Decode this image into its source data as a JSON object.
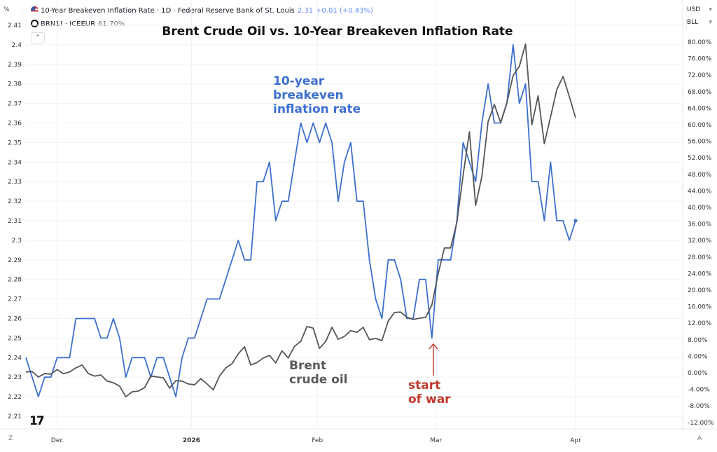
{
  "header": {
    "left_unit": "%",
    "main_series": {
      "label": "10-Year Breakeven Inflation Rate · 1D · Federal Reserve Bank of St. Louis",
      "value": "2.31",
      "change": "+0.01 (+0.43%)",
      "icon": "us-flag-icon"
    },
    "compare_series": {
      "label": "BRN1! · ICEEUR",
      "value": "61.70%",
      "icon": "ring-icon"
    },
    "collapse_icon": "chevron-up-icon",
    "currency": "USD",
    "unit": "BLL",
    "bottom_left": "Z",
    "bottom_right": "A"
  },
  "chart_data": {
    "type": "line",
    "title": "Brent Crude Oil vs. 10-Year Breakeven Inflation Rate",
    "annotations": {
      "breakeven": "10-year breakeven inflation rate",
      "brent": "Brent crude oil",
      "war": "start of war"
    },
    "x_tick_labels": [
      {
        "label": "Dec",
        "date": "2025-12-01"
      },
      {
        "label": "2026",
        "date": "2026-01-01"
      },
      {
        "label": "Feb",
        "date": "2026-02-01"
      },
      {
        "label": "Mar",
        "date": "2026-03-01"
      },
      {
        "label": "Apr",
        "date": "2026-04-01"
      }
    ],
    "left_axis": {
      "ylim": [
        2.205,
        2.415
      ],
      "ticks": [
        "2.21",
        "2.22",
        "2.23",
        "2.24",
        "2.25",
        "2.26",
        "2.27",
        "2.28",
        "2.29",
        "2.3",
        "2.31",
        "2.32",
        "2.33",
        "2.34",
        "2.35",
        "2.36",
        "2.37",
        "2.38",
        "2.39",
        "2.4",
        "2.41"
      ]
    },
    "right_axis": {
      "ylim": [
        -13,
        84
      ],
      "ticks": [
        "80.00%",
        "76.00%",
        "72.00%",
        "68.00%",
        "64.00%",
        "60.00%",
        "56.00%",
        "52.00%",
        "48.00%",
        "44.00%",
        "40.00%",
        "36.00%",
        "32.00%",
        "28.00%",
        "24.00%",
        "20.00%",
        "16.00%",
        "12.00%",
        "8.00%",
        "4.00%",
        "0.00%",
        "-4.00%",
        "-8.00%",
        "-12.00%"
      ]
    },
    "grid": true,
    "dates": [
      "2025-11-21",
      "2025-11-24",
      "2025-11-25",
      "2025-11-26",
      "2025-11-28",
      "2025-12-01",
      "2025-12-02",
      "2025-12-03",
      "2025-12-04",
      "2025-12-05",
      "2025-12-08",
      "2025-12-09",
      "2025-12-10",
      "2025-12-11",
      "2025-12-12",
      "2025-12-15",
      "2025-12-16",
      "2025-12-17",
      "2025-12-18",
      "2025-12-19",
      "2025-12-22",
      "2025-12-23",
      "2025-12-24",
      "2025-12-26",
      "2025-12-29",
      "2025-12-30",
      "2025-12-31",
      "2026-01-02",
      "2026-01-05",
      "2026-01-06",
      "2026-01-07",
      "2026-01-08",
      "2026-01-09",
      "2026-01-12",
      "2026-01-13",
      "2026-01-14",
      "2026-01-15",
      "2026-01-16",
      "2026-01-20",
      "2026-01-21",
      "2026-01-22",
      "2026-01-23",
      "2026-01-26",
      "2026-01-27",
      "2026-01-28",
      "2026-01-29",
      "2026-01-30",
      "2026-02-02",
      "2026-02-03",
      "2026-02-04",
      "2026-02-05",
      "2026-02-06",
      "2026-02-09",
      "2026-02-10",
      "2026-02-11",
      "2026-02-12",
      "2026-02-13",
      "2026-02-17",
      "2026-02-18",
      "2026-02-19",
      "2026-02-20",
      "2026-02-23",
      "2026-02-24",
      "2026-02-25",
      "2026-02-26",
      "2026-02-27",
      "2026-03-02",
      "2026-03-03",
      "2026-03-04",
      "2026-03-05",
      "2026-03-06",
      "2026-03-09",
      "2026-03-10",
      "2026-03-11",
      "2026-03-12",
      "2026-03-13",
      "2026-03-16",
      "2026-03-17",
      "2026-03-18",
      "2026-03-19",
      "2026-03-20",
      "2026-03-23",
      "2026-03-24",
      "2026-03-25",
      "2026-03-26",
      "2026-03-27",
      "2026-03-30",
      "2026-03-31",
      "2026-04-01"
    ],
    "war_start_date": "2026-02-27",
    "series": [
      {
        "key": "breakeven",
        "axis": "left",
        "color": "#3d6fcf",
        "values": [
          2.24,
          2.23,
          2.22,
          2.23,
          2.23,
          2.24,
          2.24,
          2.24,
          2.26,
          2.26,
          2.26,
          2.26,
          2.25,
          2.25,
          2.26,
          2.25,
          2.23,
          2.24,
          2.24,
          2.24,
          2.23,
          2.24,
          2.24,
          2.23,
          2.22,
          2.24,
          2.25,
          2.25,
          2.26,
          2.27,
          2.27,
          2.27,
          2.28,
          2.29,
          2.3,
          2.29,
          2.29,
          2.33,
          2.33,
          2.34,
          2.31,
          2.32,
          2.32,
          2.34,
          2.36,
          2.35,
          2.36,
          2.35,
          2.36,
          2.35,
          2.32,
          2.34,
          2.35,
          2.32,
          2.32,
          2.29,
          2.27,
          2.26,
          2.29,
          2.29,
          2.28,
          2.26,
          2.26,
          2.28,
          2.28,
          2.25,
          2.29,
          2.29,
          2.29,
          2.31,
          2.35,
          2.34,
          2.33,
          2.36,
          2.38,
          2.36,
          2.36,
          2.37,
          2.4,
          2.37,
          2.38,
          2.33,
          2.33,
          2.31,
          2.34,
          2.31,
          2.31,
          2.3,
          2.31
        ]
      },
      {
        "key": "brent",
        "axis": "right",
        "color": "#555555",
        "values": [
          0.2,
          0.3,
          -1.0,
          -0.2,
          -0.3,
          0.8,
          -0.2,
          0.2,
          1.2,
          1.9,
          -0.2,
          -0.8,
          -0.5,
          -2.0,
          -2.4,
          -3.2,
          -5.8,
          -4.6,
          -4.4,
          -3.6,
          -0.8,
          -1.0,
          -1.2,
          -3.7,
          -1.9,
          -2.0,
          -2.7,
          -2.9,
          -1.4,
          -2.7,
          -4.1,
          -0.8,
          1.2,
          2.2,
          4.6,
          6.3,
          1.9,
          2.5,
          3.6,
          4.2,
          2.4,
          5.3,
          3.6,
          6.4,
          7.6,
          11.2,
          10.8,
          5.9,
          7.6,
          11.0,
          8.1,
          8.8,
          10.2,
          9.8,
          11.0,
          8.0,
          8.3,
          7.8,
          12.5,
          14.6,
          14.7,
          13.4,
          12.9,
          13.2,
          13.4,
          16.4,
          24.0,
          30.2,
          30.2,
          36.4,
          47.8,
          58.3,
          40.5,
          47.5,
          60.8,
          64.9,
          60.5,
          65.3,
          71.9,
          74.1,
          79.5,
          60.0,
          67.0,
          55.4,
          61.9,
          68.5,
          71.7,
          66.8,
          61.7
        ]
      }
    ],
    "colors": {
      "war_annotation": "#c0392b",
      "grid": "#f0f1f4"
    }
  }
}
